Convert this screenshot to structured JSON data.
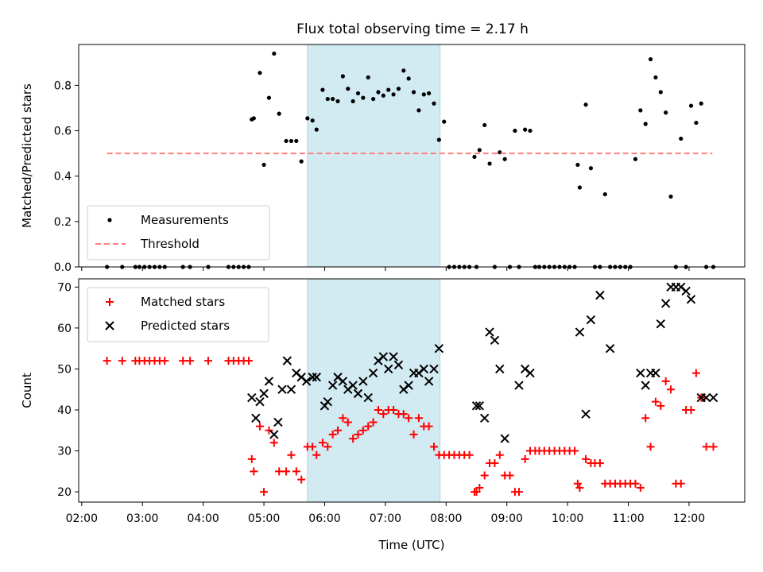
{
  "chart_data": [
    {
      "type": "scatter",
      "title": "Flux total observing time = 2.17 h",
      "ylabel": "Matched/Predicted stars",
      "ylim": [
        0,
        0.98
      ],
      "yticks": [
        0.0,
        0.2,
        0.4,
        0.6,
        0.8
      ],
      "ytick_labels": [
        "0.0",
        "0.2",
        "0.4",
        "0.6",
        "0.8"
      ],
      "xlim": [
        "01:57",
        "12:55"
      ],
      "highlight_span": [
        "05:43",
        "07:54"
      ],
      "highlight_color": "#add8e6",
      "legend_position": "lower-left",
      "grid": false,
      "series": [
        {
          "name": "Measurements",
          "marker": "dot",
          "color": "#000000",
          "x": [
            "02:25",
            "02:40",
            "02:53",
            "02:57",
            "03:02",
            "03:07",
            "03:12",
            "03:17",
            "03:22",
            "03:40",
            "03:47",
            "04:05",
            "04:25",
            "04:30",
            "04:35",
            "04:40",
            "04:45",
            "04:48",
            "04:50",
            "04:56",
            "05:00",
            "05:05",
            "05:10",
            "05:15",
            "05:22",
            "05:27",
            "05:32",
            "05:37",
            "05:43",
            "05:48",
            "05:52",
            "05:58",
            "06:03",
            "06:08",
            "06:13",
            "06:18",
            "06:23",
            "06:28",
            "06:33",
            "06:38",
            "06:43",
            "06:48",
            "06:53",
            "06:58",
            "07:03",
            "07:08",
            "07:13",
            "07:18",
            "07:23",
            "07:28",
            "07:33",
            "07:38",
            "07:43",
            "07:48",
            "07:53",
            "07:58",
            "08:03",
            "08:08",
            "08:13",
            "08:18",
            "08:23",
            "08:28",
            "08:30",
            "08:33",
            "08:38",
            "08:43",
            "08:48",
            "08:53",
            "08:58",
            "09:03",
            "09:08",
            "09:12",
            "09:18",
            "09:23",
            "09:28",
            "09:32",
            "09:37",
            "09:42",
            "09:47",
            "09:52",
            "09:57",
            "10:02",
            "10:07",
            "10:10",
            "10:12",
            "10:18",
            "10:23",
            "10:27",
            "10:32",
            "10:37",
            "10:42",
            "10:47",
            "10:52",
            "10:57",
            "11:02",
            "11:07",
            "11:12",
            "11:17",
            "11:22",
            "11:27",
            "11:32",
            "11:37",
            "11:42",
            "11:47",
            "11:52",
            "11:57",
            "12:02",
            "12:07",
            "12:12",
            "12:17",
            "12:24"
          ],
          "y": [
            0.0,
            0.0,
            0.0,
            0.0,
            0.0,
            0.0,
            0.0,
            0.0,
            0.0,
            0.0,
            0.0,
            0.0,
            0.0,
            0.0,
            0.0,
            0.0,
            0.0,
            0.65,
            0.655,
            0.855,
            0.45,
            0.745,
            0.94,
            0.675,
            0.555,
            0.555,
            0.555,
            0.465,
            0.655,
            0.645,
            0.605,
            0.78,
            0.74,
            0.74,
            0.73,
            0.84,
            0.785,
            0.73,
            0.765,
            0.745,
            0.835,
            0.74,
            0.77,
            0.755,
            0.78,
            0.76,
            0.785,
            0.865,
            0.83,
            0.77,
            0.69,
            0.76,
            0.765,
            0.72,
            0.56,
            0.64,
            0.0,
            0.0,
            0.0,
            0.0,
            0.0,
            0.485,
            0.0,
            0.515,
            0.625,
            0.455,
            0.0,
            0.505,
            0.475,
            0.0,
            0.6,
            0.0,
            0.605,
            0.6,
            0.0,
            0.0,
            0.0,
            0.0,
            0.0,
            0.0,
            0.0,
            0.0,
            0.0,
            0.45,
            0.35,
            0.715,
            0.435,
            0.0,
            0.0,
            0.32,
            0.0,
            0.0,
            0.0,
            0.0,
            0.0,
            0.475,
            0.69,
            0.63,
            0.915,
            0.835,
            0.77,
            0.68,
            0.31,
            0.0,
            0.565,
            0.0,
            0.71,
            0.635,
            0.72,
            0.0,
            0.0
          ]
        },
        {
          "name": "Threshold",
          "style": "dashed",
          "color": "#ff7f7f",
          "x": [
            "02:25",
            "12:23"
          ],
          "y": [
            0.5,
            0.5
          ]
        }
      ]
    },
    {
      "type": "scatter",
      "ylabel": "Count",
      "xlabel": "Time (UTC)",
      "ylim": [
        17.5,
        72
      ],
      "yticks": [
        20,
        30,
        40,
        50,
        60,
        70
      ],
      "ytick_labels": [
        "20",
        "30",
        "40",
        "50",
        "60",
        "70"
      ],
      "xlim": [
        "01:57",
        "12:55"
      ],
      "xticks": [
        "02:00",
        "03:00",
        "04:00",
        "05:00",
        "06:00",
        "07:00",
        "08:00",
        "09:00",
        "10:00",
        "11:00",
        "12:00"
      ],
      "xtick_labels": [
        "02:00",
        "03:00",
        "04:00",
        "05:00",
        "06:00",
        "07:00",
        "08:00",
        "09:00",
        "10:00",
        "11:00",
        "12:00"
      ],
      "highlight_span": [
        "05:43",
        "07:54"
      ],
      "highlight_color": "#add8e6",
      "legend_position": "upper-left",
      "grid": false,
      "series": [
        {
          "name": "Matched stars",
          "marker": "plus",
          "color": "#ff0000",
          "x": [
            "02:25",
            "02:40",
            "02:53",
            "02:57",
            "03:02",
            "03:07",
            "03:12",
            "03:17",
            "03:22",
            "03:40",
            "03:47",
            "04:05",
            "04:25",
            "04:30",
            "04:35",
            "04:40",
            "04:45",
            "04:48",
            "04:50",
            "04:56",
            "05:00",
            "05:05",
            "05:10",
            "05:15",
            "05:22",
            "05:27",
            "05:32",
            "05:37",
            "05:43",
            "05:48",
            "05:52",
            "05:58",
            "06:03",
            "06:08",
            "06:13",
            "06:18",
            "06:23",
            "06:28",
            "06:33",
            "06:38",
            "06:43",
            "06:48",
            "06:53",
            "06:58",
            "07:03",
            "07:08",
            "07:13",
            "07:18",
            "07:23",
            "07:28",
            "07:33",
            "07:38",
            "07:43",
            "07:48",
            "07:53",
            "07:58",
            "08:03",
            "08:08",
            "08:13",
            "08:18",
            "08:23",
            "08:28",
            "08:30",
            "08:33",
            "08:38",
            "08:43",
            "08:48",
            "08:53",
            "08:58",
            "09:03",
            "09:08",
            "09:12",
            "09:18",
            "09:23",
            "09:28",
            "09:32",
            "09:37",
            "09:42",
            "09:47",
            "09:52",
            "09:57",
            "10:02",
            "10:07",
            "10:10",
            "10:12",
            "10:18",
            "10:23",
            "10:27",
            "10:32",
            "10:37",
            "10:42",
            "10:47",
            "10:52",
            "10:57",
            "11:02",
            "11:07",
            "11:12",
            "11:17",
            "11:22",
            "11:27",
            "11:32",
            "11:37",
            "11:42",
            "11:47",
            "11:52",
            "11:57",
            "12:02",
            "12:07",
            "12:12",
            "12:17",
            "12:24"
          ],
          "y": [
            52,
            52,
            52,
            52,
            52,
            52,
            52,
            52,
            52,
            52,
            52,
            52,
            52,
            52,
            52,
            52,
            52,
            28,
            25,
            36,
            20,
            35,
            32,
            25,
            25,
            29,
            25,
            23,
            31,
            31,
            29,
            32,
            31,
            34,
            35,
            38,
            37,
            33,
            34,
            35,
            36,
            37,
            40,
            39,
            40,
            40,
            39,
            39,
            38,
            34,
            38,
            36,
            36,
            31,
            29,
            29,
            29,
            29,
            29,
            29,
            29,
            20,
            20,
            21,
            24,
            27,
            27,
            29,
            24,
            24,
            20,
            20,
            28,
            30,
            30,
            30,
            30,
            30,
            30,
            30,
            30,
            30,
            30,
            22,
            21,
            28,
            27,
            27,
            27,
            22,
            22,
            22,
            22,
            22,
            22,
            22,
            21,
            38,
            31,
            42,
            41,
            47,
            45,
            22,
            22,
            40,
            40,
            49,
            43,
            31,
            31
          ]
        },
        {
          "name": "Predicted stars",
          "marker": "x",
          "color": "#000000",
          "x": [
            "04:48",
            "04:52",
            "04:56",
            "05:00",
            "05:05",
            "05:10",
            "05:14",
            "05:18",
            "05:23",
            "05:27",
            "05:32",
            "05:37",
            "05:42",
            "05:48",
            "05:52",
            "06:00",
            "06:03",
            "06:08",
            "06:13",
            "06:18",
            "06:23",
            "06:28",
            "06:33",
            "06:38",
            "06:43",
            "06:48",
            "06:53",
            "06:58",
            "07:03",
            "07:08",
            "07:13",
            "07:18",
            "07:23",
            "07:28",
            "07:33",
            "07:38",
            "07:43",
            "07:48",
            "07:53",
            "08:30",
            "08:33",
            "08:38",
            "08:43",
            "08:48",
            "08:53",
            "08:58",
            "09:12",
            "09:18",
            "09:23",
            "10:12",
            "10:18",
            "10:23",
            "10:32",
            "10:42",
            "11:12",
            "11:17",
            "11:22",
            "11:27",
            "11:32",
            "11:37",
            "11:42",
            "11:47",
            "11:52",
            "11:57",
            "12:02",
            "12:12",
            "12:17",
            "12:24"
          ],
          "y": [
            43,
            38,
            42,
            44,
            47,
            34,
            37,
            45,
            52,
            45,
            49,
            48,
            47,
            48,
            48,
            41,
            42,
            46,
            48,
            47,
            45,
            46,
            44,
            47,
            43,
            49,
            52,
            53,
            50,
            53,
            51,
            45,
            46,
            49,
            49,
            50,
            47,
            50,
            55,
            41,
            41,
            38,
            59,
            57,
            50,
            33,
            46,
            50,
            49,
            59,
            39,
            62,
            68,
            55,
            49,
            46,
            49,
            49,
            61,
            66,
            70,
            70,
            70,
            69,
            67,
            43,
            43,
            43
          ]
        }
      ]
    }
  ]
}
